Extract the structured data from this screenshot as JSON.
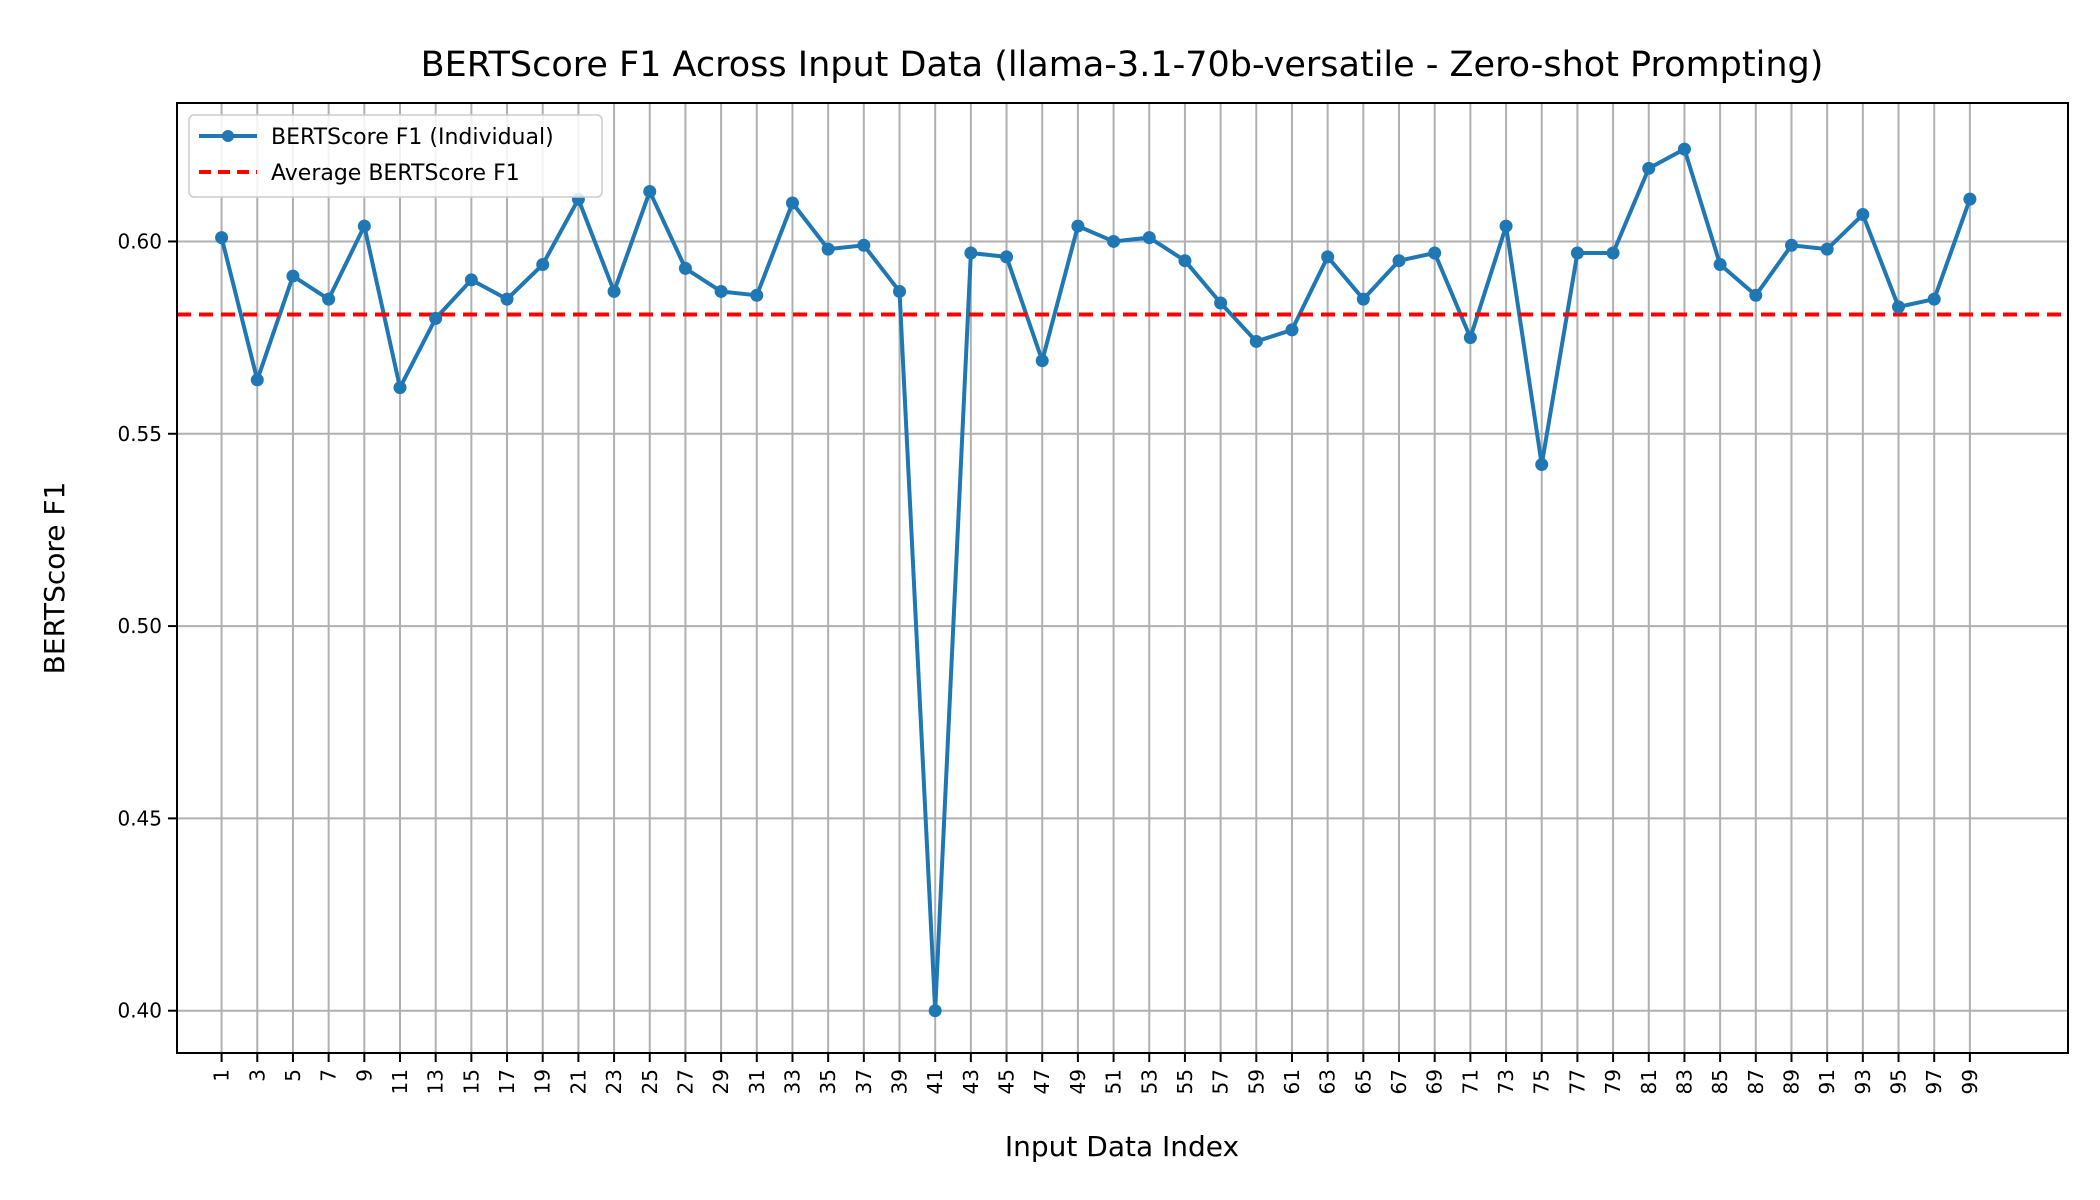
{
  "chart_data": {
    "type": "line",
    "title": "BERTScore F1 Across Input Data (llama-3.1-70b-versatile - Zero-shot Prompting)",
    "xlabel": "Input Data Index",
    "ylabel": "BERTScore F1",
    "xlim": [
      -1.5,
      104.5
    ],
    "ylim": [
      0.389,
      0.636
    ],
    "xticks": [
      1,
      3,
      5,
      7,
      9,
      11,
      13,
      15,
      17,
      19,
      21,
      23,
      25,
      27,
      29,
      31,
      33,
      35,
      37,
      39,
      41,
      43,
      45,
      47,
      49,
      51,
      53,
      55,
      57,
      59,
      61,
      63,
      65,
      67,
      69,
      71,
      73,
      75,
      77,
      79,
      81,
      83,
      85,
      87,
      89,
      91,
      93,
      95,
      97,
      99
    ],
    "yticks": [
      0.4,
      0.45,
      0.5,
      0.55,
      0.6
    ],
    "ytick_labels": [
      "0.40",
      "0.45",
      "0.50",
      "0.55",
      "0.60"
    ],
    "grid": true,
    "legend_position": "top-left",
    "series": [
      {
        "name": "BERTScore F1 (Individual)",
        "style": "line-with-markers",
        "color": "#1f77b4",
        "x": [
          1,
          3,
          5,
          7,
          9,
          11,
          13,
          15,
          17,
          19,
          21,
          23,
          25,
          27,
          29,
          31,
          33,
          35,
          37,
          39,
          41,
          43,
          45,
          47,
          49,
          51,
          53,
          55,
          57,
          59,
          61,
          63,
          65,
          67,
          69,
          71,
          73,
          75,
          77,
          79,
          81,
          83,
          85,
          87,
          89,
          91,
          93,
          95,
          97,
          99
        ],
        "values": [
          0.601,
          0.564,
          0.591,
          0.585,
          0.604,
          0.562,
          0.58,
          0.59,
          0.585,
          0.594,
          0.611,
          0.587,
          0.613,
          0.593,
          0.587,
          0.586,
          0.61,
          0.598,
          0.599,
          0.587,
          0.4,
          0.597,
          0.596,
          0.569,
          0.604,
          0.6,
          0.601,
          0.595,
          0.584,
          0.574,
          0.577,
          0.596,
          0.585,
          0.595,
          0.597,
          0.575,
          0.604,
          0.542,
          0.597,
          0.597,
          0.619,
          0.624,
          0.594,
          0.586,
          0.599,
          0.598,
          0.607,
          0.583,
          0.585,
          0.611
        ]
      },
      {
        "name": "Average BERTScore F1",
        "style": "dashed",
        "color": "#ff0000",
        "constant": 0.581
      }
    ]
  }
}
